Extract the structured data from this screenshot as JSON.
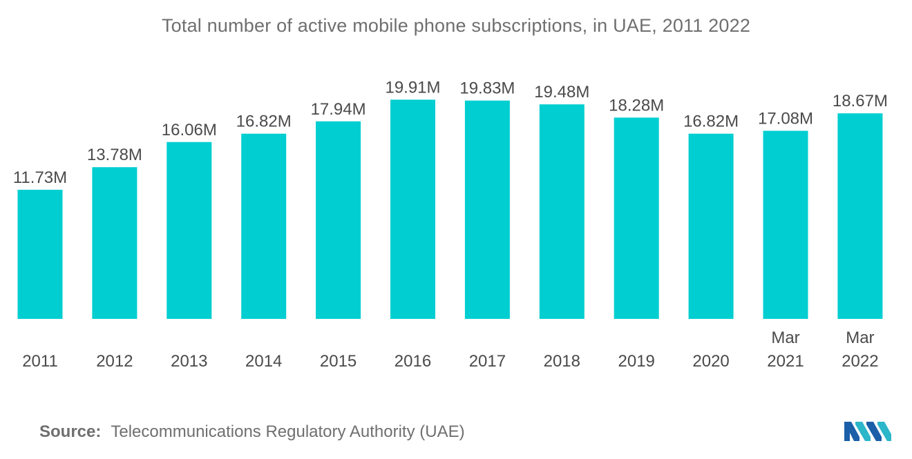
{
  "title": "Total number of active mobile phone subscriptions, in UAE, 2011  2022",
  "source": {
    "label": "Source:",
    "text": "Telecommunications Regulatory Authority (UAE)"
  },
  "logo": {
    "icon": "mordor-intelligence-logo-icon",
    "colors": [
      "#1a5fa8",
      "#2bb6c9"
    ]
  },
  "chart_data": {
    "type": "bar",
    "categories": [
      "2011",
      "2012",
      "2013",
      "2014",
      "2015",
      "2016",
      "2017",
      "2018",
      "2019",
      "2020",
      "Mar 2021",
      "Mar 2022"
    ],
    "category_lines": [
      [
        "2011"
      ],
      [
        "2012"
      ],
      [
        "2013"
      ],
      [
        "2014"
      ],
      [
        "2015"
      ],
      [
        "2016"
      ],
      [
        "2017"
      ],
      [
        "2018"
      ],
      [
        "2019"
      ],
      [
        "2020"
      ],
      [
        "Mar",
        "2021"
      ],
      [
        "Mar",
        "2022"
      ]
    ],
    "values": [
      11.73,
      13.78,
      16.06,
      16.82,
      17.94,
      19.91,
      19.83,
      19.48,
      18.28,
      16.82,
      17.08,
      18.67
    ],
    "data_labels": [
      "11.73M",
      "13.78M",
      "16.06M",
      "16.82M",
      "17.94M",
      "19.91M",
      "19.83M",
      "19.48M",
      "18.28M",
      "16.82M",
      "17.08M",
      "18.67M"
    ],
    "unit": "M",
    "ylim": [
      0,
      21
    ],
    "bar_color": "#00ced1",
    "grid": false,
    "legend": "none"
  }
}
